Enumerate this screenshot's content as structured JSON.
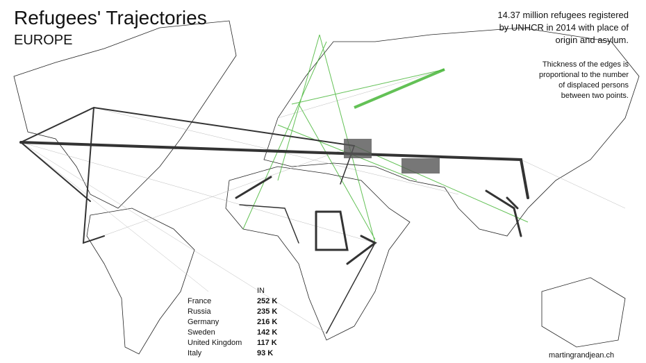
{
  "header": {
    "title": "Refugees' Trajectories",
    "subtitle": "EUROPE"
  },
  "description": [
    "14.37 million refugees registered",
    "by UNHCR in 2014 with place of",
    "origin and asylum."
  ],
  "note": [
    "Thickness of the edges is",
    "proportional to the number",
    "of displaced persons",
    "between two points."
  ],
  "table": {
    "header": "IN",
    "rows": [
      [
        "France",
        "252 K"
      ],
      [
        "Russia",
        "235 K"
      ],
      [
        "Germany",
        "216 K"
      ],
      [
        "Sweden",
        "142 K"
      ],
      [
        "United Kingdom",
        "117 K"
      ],
      [
        "Italy",
        "93 K"
      ]
    ]
  },
  "credit": "martingrandjean.ch"
}
